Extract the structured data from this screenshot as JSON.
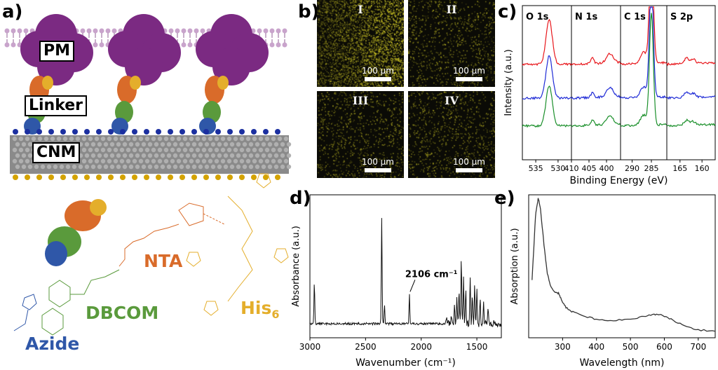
{
  "panels": {
    "a": "a)",
    "b": "b)",
    "c": "c)",
    "d": "d)",
    "e": "e)"
  },
  "panel_a": {
    "labels": {
      "pm": "PM",
      "linker": "Linker",
      "cnm": "CNM"
    },
    "chem_labels": {
      "nta": "NTA",
      "dbcom": "DBCOM",
      "azide": "Azide",
      "his_base": "His",
      "his_sub": "6"
    }
  },
  "panel_b": {
    "tiles": [
      {
        "id": "I",
        "scale": "100 µm",
        "brightness": "high"
      },
      {
        "id": "II",
        "scale": "100 µm",
        "brightness": "low"
      },
      {
        "id": "III",
        "scale": "100 µm",
        "brightness": "low"
      },
      {
        "id": "IV",
        "scale": "100 µm",
        "brightness": "low"
      }
    ]
  },
  "chart_data": [
    {
      "id": "c",
      "type": "line",
      "title": "",
      "xlabel": "Binding Energy (eV)",
      "ylabel": "Intensity (a.u.)",
      "sections": [
        {
          "label": "O 1s",
          "xlim": [
            538,
            527
          ],
          "ticks": [
            535,
            530
          ]
        },
        {
          "label": "N 1s",
          "xlim": [
            410,
            396
          ],
          "ticks": [
            410,
            405,
            400
          ]
        },
        {
          "label": "C 1s",
          "xlim": [
            293,
            281
          ],
          "ticks": [
            290,
            285
          ]
        },
        {
          "label": "S 2p",
          "xlim": [
            168,
            157
          ],
          "ticks": [
            165,
            160
          ]
        }
      ],
      "series": [
        {
          "name": "red",
          "color": "#e8161b",
          "offset": 0.62
        },
        {
          "name": "blue",
          "color": "#1f2bd6",
          "offset": 0.4
        },
        {
          "name": "green",
          "color": "#1a8f2a",
          "offset": 0.22
        }
      ]
    },
    {
      "id": "d",
      "type": "line",
      "title": "",
      "xlabel": "Wavenumber (cm⁻¹)",
      "ylabel": "Absorbance (a.u.)",
      "xlim": [
        3000,
        1280
      ],
      "xticks": [
        3000,
        2500,
        2000,
        1500
      ],
      "annotation": {
        "text": "2106 cm⁻¹",
        "x": 2106
      },
      "peaks": [
        [
          2960,
          0.36
        ],
        [
          2355,
          0.92
        ],
        [
          2330,
          0.17
        ],
        [
          2106,
          0.26
        ],
        [
          1770,
          0.05
        ],
        [
          1730,
          0.08
        ],
        [
          1700,
          0.16
        ],
        [
          1680,
          0.22
        ],
        [
          1660,
          0.3
        ],
        [
          1640,
          0.6
        ],
        [
          1620,
          0.4
        ],
        [
          1600,
          0.3
        ],
        [
          1560,
          0.38
        ],
        [
          1540,
          0.26
        ],
        [
          1520,
          0.36
        ],
        [
          1500,
          0.3
        ],
        [
          1470,
          0.22
        ],
        [
          1440,
          0.18
        ],
        [
          1400,
          0.14
        ]
      ]
    },
    {
      "id": "e",
      "type": "line",
      "title": "",
      "xlabel": "Wavelength (nm)",
      "ylabel": "Absorption (a.u.)",
      "xlim": [
        200,
        750
      ],
      "xticks": [
        300,
        400,
        500,
        600,
        700
      ],
      "points": [
        [
          210,
          0.4
        ],
        [
          220,
          0.85
        ],
        [
          228,
          0.98
        ],
        [
          235,
          0.9
        ],
        [
          245,
          0.65
        ],
        [
          255,
          0.45
        ],
        [
          265,
          0.36
        ],
        [
          278,
          0.32
        ],
        [
          288,
          0.31
        ],
        [
          298,
          0.26
        ],
        [
          310,
          0.21
        ],
        [
          330,
          0.18
        ],
        [
          360,
          0.155
        ],
        [
          400,
          0.13
        ],
        [
          450,
          0.12
        ],
        [
          500,
          0.13
        ],
        [
          540,
          0.15
        ],
        [
          570,
          0.165
        ],
        [
          590,
          0.16
        ],
        [
          620,
          0.13
        ],
        [
          660,
          0.08
        ],
        [
          700,
          0.055
        ],
        [
          750,
          0.045
        ]
      ]
    }
  ]
}
